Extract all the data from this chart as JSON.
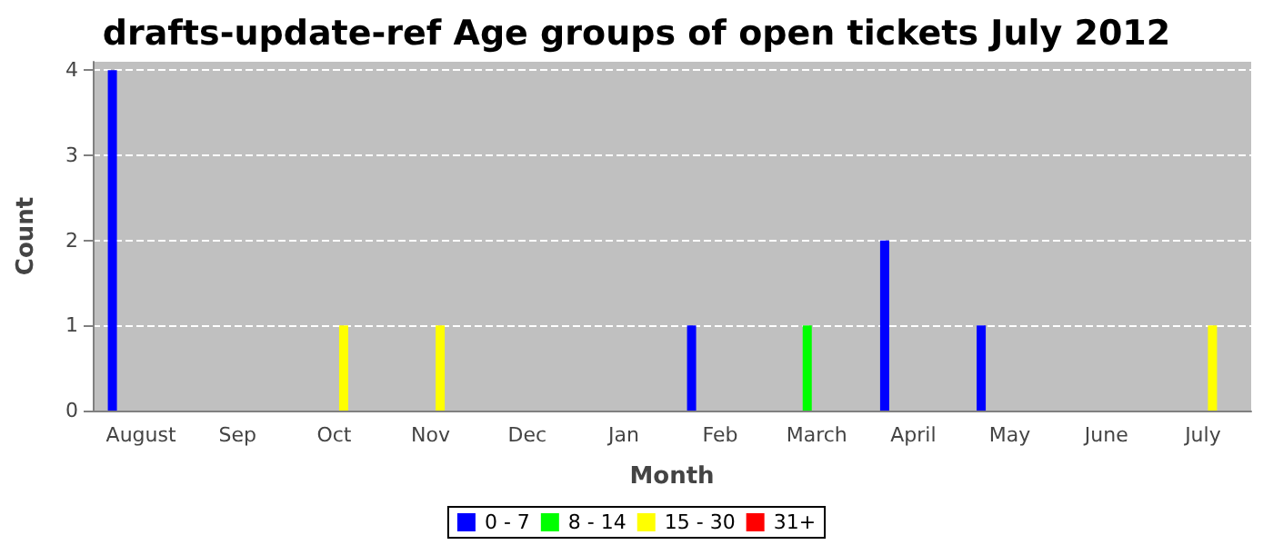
{
  "chart_data": {
    "type": "bar",
    "title": "drafts-update-ref Age groups of open tickets July 2012",
    "xlabel": "Month",
    "ylabel": "Count",
    "categories": [
      "August",
      "Sep",
      "Oct",
      "Nov",
      "Dec",
      "Jan",
      "Feb",
      "March",
      "April",
      "May",
      "June",
      "July"
    ],
    "series": [
      {
        "name": "0 - 7",
        "color": "#0000ff",
        "values": [
          4,
          0,
          0,
          0,
          0,
          0,
          1,
          0,
          2,
          1,
          0,
          0
        ]
      },
      {
        "name": "8 - 14",
        "color": "#00ff00",
        "values": [
          0,
          0,
          0,
          0,
          0,
          0,
          0,
          1,
          0,
          0,
          0,
          0
        ]
      },
      {
        "name": "15 - 30",
        "color": "#ffff00",
        "values": [
          0,
          0,
          1,
          1,
          0,
          0,
          0,
          0,
          0,
          0,
          0,
          1
        ]
      },
      {
        "name": "31+",
        "color": "#ff0000",
        "values": [
          0,
          0,
          0,
          0,
          0,
          0,
          0,
          0,
          0,
          0,
          0,
          0
        ]
      }
    ],
    "ylim": [
      0,
      4.1
    ],
    "yticks": [
      0,
      1,
      2,
      3,
      4
    ],
    "grid": "y",
    "legend": "bottom"
  }
}
